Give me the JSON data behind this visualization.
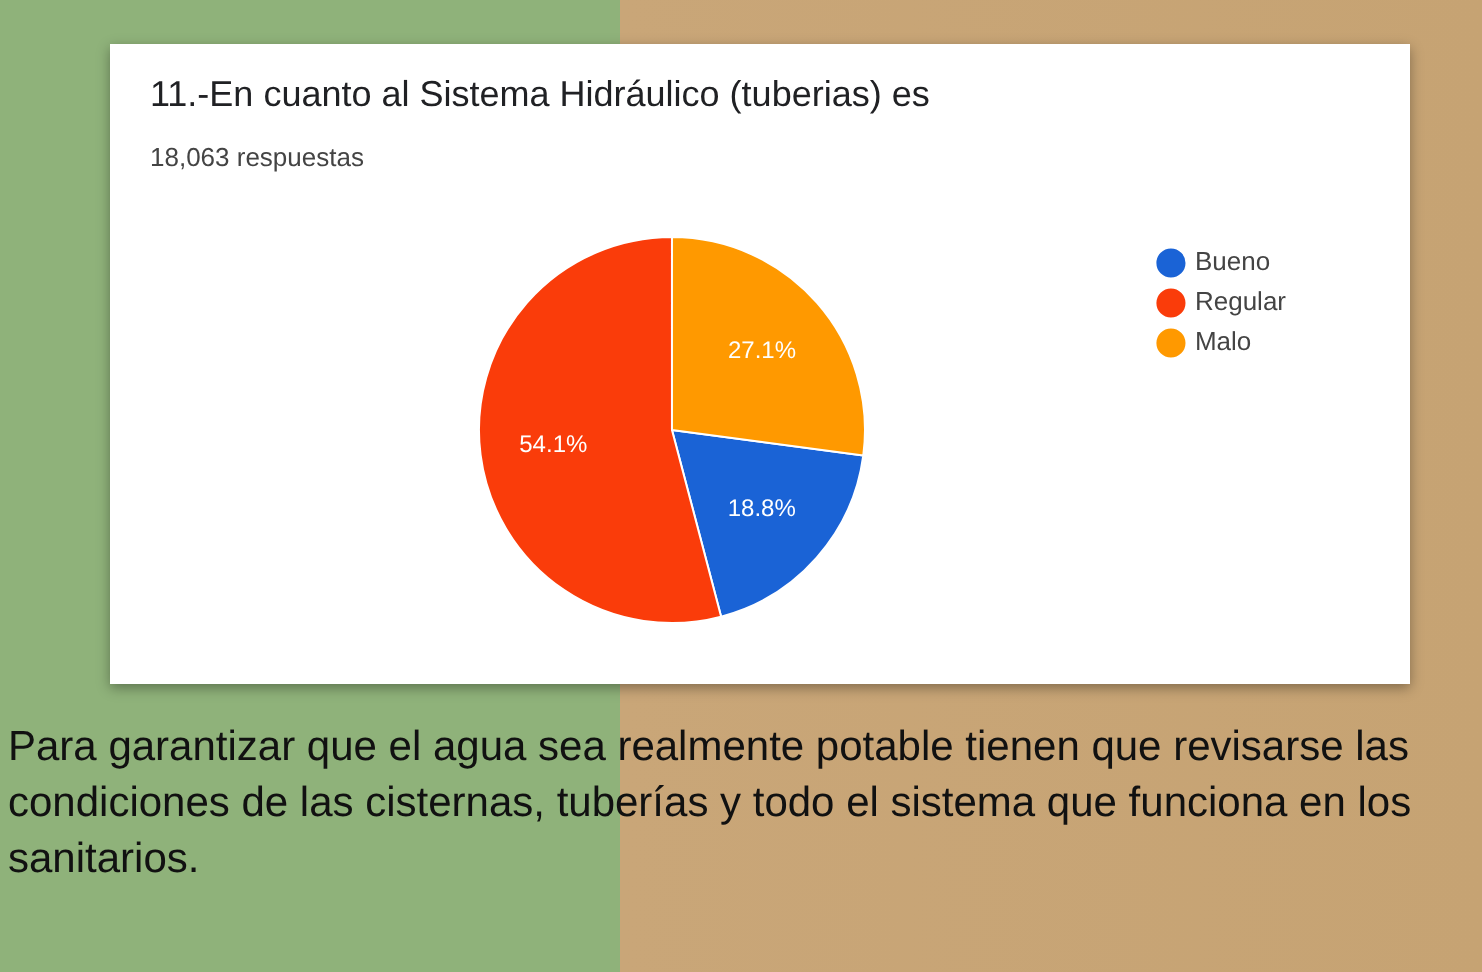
{
  "chart_data": {
    "type": "pie",
    "title": "11.-En cuanto al Sistema Hidráulico (tuberias) es",
    "subtitle": "18,063 respuestas",
    "categories": [
      "Bueno",
      "Regular",
      "Malo"
    ],
    "values": [
      18.8,
      54.1,
      27.1
    ],
    "colors": [
      "#1a63d6",
      "#fa3c0a",
      "#ff9900"
    ],
    "value_labels": [
      "18.8%",
      "54.1%",
      "27.1%"
    ],
    "legend": "right",
    "annotations": [
      "Para garantizar que el agua sea realmente potable tienen que revisarse las condiciones de las cisternas, tuberías y todo el sistema que funciona en los sanitarios."
    ]
  }
}
